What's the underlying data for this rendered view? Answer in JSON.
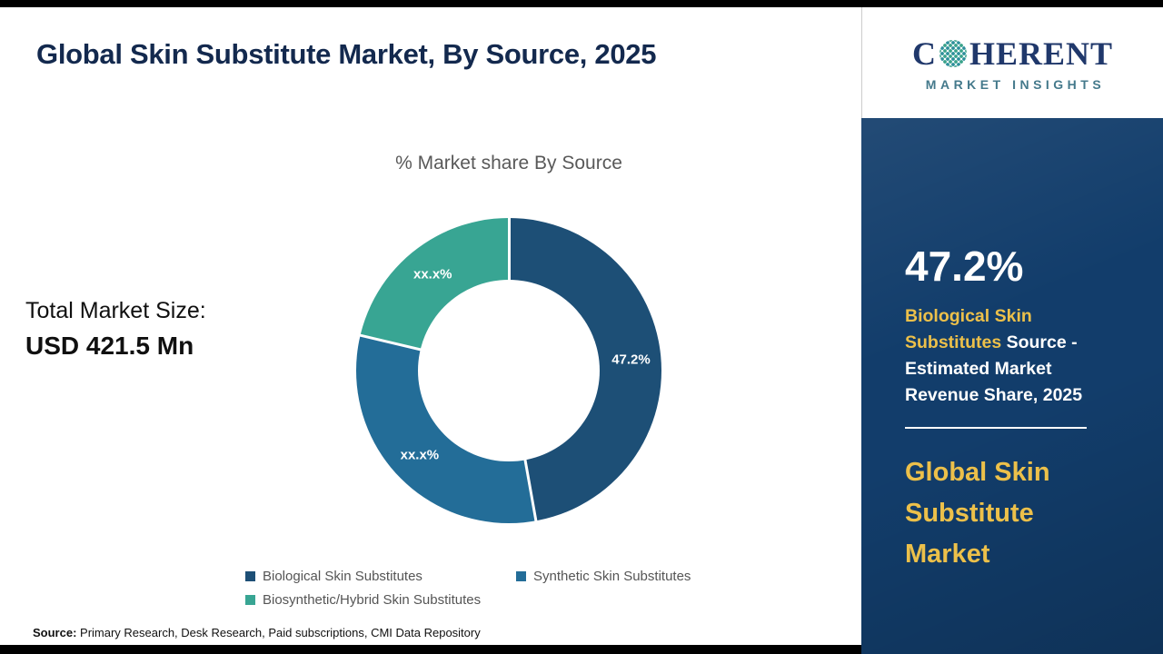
{
  "header": {
    "title": "Global Skin Substitute Market, By Source, 2025"
  },
  "chart_data": {
    "type": "pie",
    "subtype": "donut",
    "title": "% Market share By Source",
    "categories": [
      "Biological Skin Substitutes",
      "Synthetic Skin Substitutes",
      "Biosynthetic/Hybrid Skin Substitutes"
    ],
    "values": [
      47.2,
      31.5,
      21.3
    ],
    "value_labels": [
      "47.2%",
      "xx.x%",
      "xx.x%"
    ],
    "colors": [
      "#1d4f76",
      "#236d98",
      "#38a593"
    ],
    "legend_position": "bottom",
    "start_angle_deg": 0,
    "direction": "clockwise"
  },
  "total_market": {
    "label": "Total Market Size:",
    "value": "USD 421.5 Mn"
  },
  "footer": {
    "source_label": "Source:",
    "source_text": " Primary Research, Desk Research, Paid subscriptions, CMI Data Repository"
  },
  "sidebar": {
    "logo": {
      "c": "C",
      "rest": "HERENT",
      "subtext": "MARKET INSIGHTS"
    },
    "stat_value": "47.2%",
    "stat_highlight": "Biological Skin Substitutes",
    "stat_rest": " Source - Estimated Market Revenue Share, 2025",
    "market_title": "Global Skin Substitute Market",
    "colors": {
      "background": "#123d6b",
      "accent_gold": "#ecc04a"
    }
  }
}
